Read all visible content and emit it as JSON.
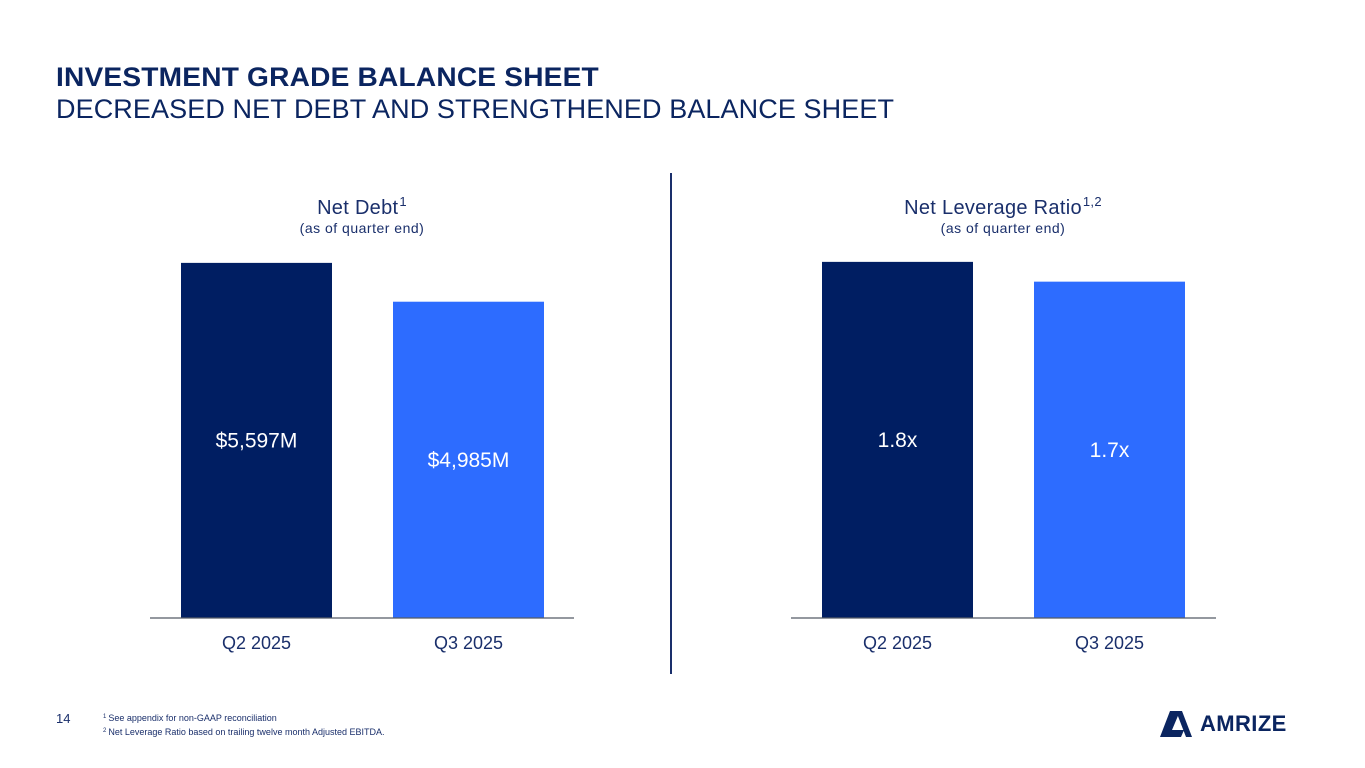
{
  "slide": {
    "title": "INVESTMENT GRADE BALANCE SHEET",
    "subtitle": "DECREASED NET DEBT AND STRENGTHENED BALANCE SHEET",
    "page_number": "14",
    "footnotes": [
      {
        "mark": "1",
        "text": "See appendix for non-GAAP reconciliation"
      },
      {
        "mark": "2",
        "text": "Net Leverage Ratio based on trailing twelve month Adjusted EBITDA."
      }
    ],
    "logo_text": "AMRIZE"
  },
  "colors": {
    "navy": "#001e62",
    "blue": "#2d6cff",
    "text": "#0b2560"
  },
  "chart_data": [
    {
      "type": "bar",
      "title": "Net Debt",
      "title_sup": "1",
      "subtitle": "(as of quarter end)",
      "categories": [
        "Q2 2025",
        "Q3 2025"
      ],
      "values": [
        5597,
        4985
      ],
      "value_labels": [
        "$5,597M",
        "$4,985M"
      ],
      "ylim": [
        0,
        5800
      ]
    },
    {
      "type": "bar",
      "title": "Net Leverage Ratio",
      "title_sup": "1,2",
      "subtitle": "(as of quarter end)",
      "categories": [
        "Q2 2025",
        "Q3 2025"
      ],
      "values": [
        1.8,
        1.7
      ],
      "value_labels": [
        "1.8x",
        "1.7x"
      ],
      "ylim": [
        0,
        1.86
      ]
    }
  ]
}
